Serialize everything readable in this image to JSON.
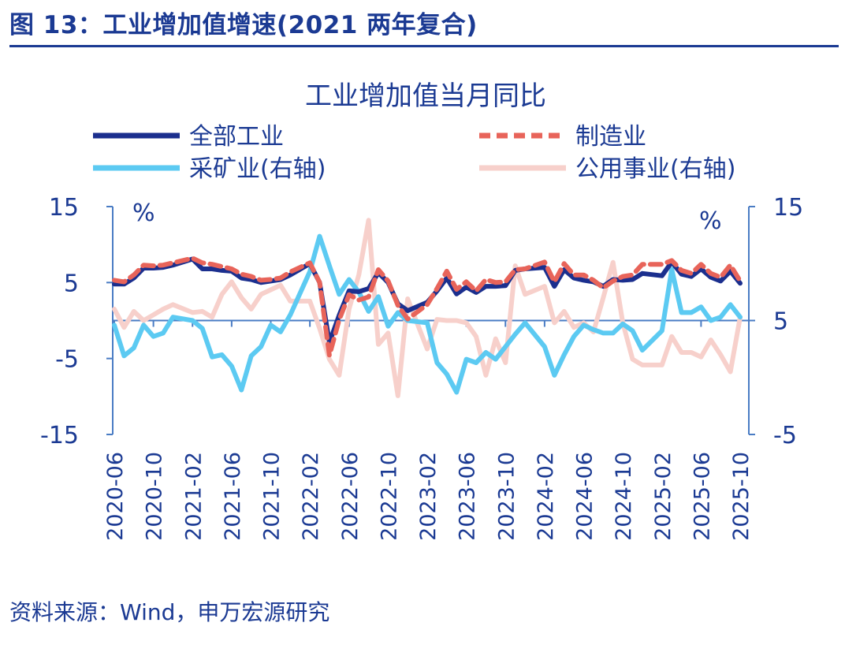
{
  "header": {
    "figure_title": "图 13：工业增加值增速(2021 两年复合)"
  },
  "footer": {
    "source": "资料来源：Wind，申万宏源研究"
  },
  "colors": {
    "total": "#1b2f8e",
    "manufacturing": "#e8645a",
    "mining": "#5ccaf2",
    "utilities": "#f7d0cb",
    "axis": "#4a7cc4",
    "text": "#1b3a93"
  },
  "chart_data": {
    "type": "line",
    "title": "工业增加值当月同比",
    "left_unit": "%",
    "right_unit": "%",
    "ylim_left": [
      -15,
      15
    ],
    "ylim_right": [
      -5,
      15
    ],
    "yticks_left": [
      "15",
      "5",
      "-5",
      "-15"
    ],
    "yticks_right": [
      "15",
      "5",
      "-5"
    ],
    "legend_placement": "top",
    "x": [
      "2020-06",
      "2020-07",
      "2020-08",
      "2020-09",
      "2020-10",
      "2020-11",
      "2020-12",
      "2021-01",
      "2021-02",
      "2021-03",
      "2021-04",
      "2021-05",
      "2021-06",
      "2021-07",
      "2021-08",
      "2021-09",
      "2021-10",
      "2021-11",
      "2021-12",
      "2022-01",
      "2022-02",
      "2022-03",
      "2022-04",
      "2022-05",
      "2022-06",
      "2022-07",
      "2022-08",
      "2022-09",
      "2022-10",
      "2022-11",
      "2022-12",
      "2023-01",
      "2023-02",
      "2023-03",
      "2023-04",
      "2023-05",
      "2023-06",
      "2023-07",
      "2023-08",
      "2023-09",
      "2023-10",
      "2023-11",
      "2023-12",
      "2024-01",
      "2024-02",
      "2024-03",
      "2024-04",
      "2024-05",
      "2024-06",
      "2024-07",
      "2024-08",
      "2024-09",
      "2024-10",
      "2024-11",
      "2024-12",
      "2025-01",
      "2025-02",
      "2025-03",
      "2025-04",
      "2025-05",
      "2025-06",
      "2025-07",
      "2025-08",
      "2025-09",
      "2025-10"
    ],
    "xtick_labels": [
      "2020-06",
      "2020-10",
      "2021-02",
      "2021-06",
      "2021-10",
      "2022-02",
      "2022-06",
      "2022-10",
      "2023-02",
      "2023-06",
      "2023-10",
      "2024-02",
      "2024-06",
      "2024-10",
      "2025-02",
      "2025-06",
      "2025-10"
    ],
    "series": [
      {
        "name": "全部工业",
        "axis": "left",
        "style": "solid",
        "values": [
          4.8,
          4.8,
          5.6,
          6.9,
          6.9,
          7.0,
          7.3,
          null,
          8.1,
          6.8,
          6.8,
          6.6,
          6.5,
          5.6,
          5.4,
          5.0,
          5.2,
          5.4,
          6.0,
          null,
          7.5,
          5.0,
          -2.9,
          0.7,
          3.9,
          3.8,
          4.2,
          6.3,
          5.0,
          2.2,
          1.3,
          null,
          2.4,
          3.9,
          5.6,
          3.5,
          4.4,
          3.7,
          4.5,
          4.5,
          4.6,
          6.6,
          6.8,
          null,
          7.0,
          4.5,
          6.7,
          5.6,
          5.3,
          5.1,
          4.5,
          5.4,
          5.3,
          5.4,
          6.2,
          null,
          5.9,
          7.7,
          6.1,
          5.8,
          6.8,
          5.7,
          5.2,
          6.5,
          4.9
        ]
      },
      {
        "name": "制造业",
        "axis": "left",
        "style": "dashed",
        "values": [
          5.3,
          5.1,
          6.0,
          7.3,
          7.2,
          7.3,
          7.6,
          null,
          8.2,
          7.6,
          7.4,
          7.1,
          6.8,
          6.1,
          5.8,
          5.3,
          5.4,
          5.6,
          6.4,
          null,
          7.6,
          5.0,
          -4.6,
          0.1,
          3.4,
          2.7,
          3.1,
          6.7,
          5.2,
          2.0,
          0.2,
          null,
          2.1,
          4.2,
          6.5,
          4.1,
          5.1,
          3.9,
          5.4,
          5.0,
          5.1,
          6.7,
          6.8,
          null,
          7.7,
          5.1,
          7.5,
          6.0,
          6.0,
          5.3,
          4.3,
          5.2,
          5.8,
          6.0,
          7.4,
          null,
          7.4,
          7.9,
          6.6,
          6.2,
          7.4,
          6.2,
          5.7,
          7.3,
          5.2
        ]
      },
      {
        "name": "采矿业(右轴)",
        "axis": "right",
        "style": "solid",
        "values": [
          4.6,
          1.9,
          2.6,
          4.6,
          3.6,
          3.9,
          5.3,
          null,
          5.0,
          4.3,
          1.8,
          2.0,
          1.0,
          -1.1,
          1.9,
          2.7,
          4.6,
          4.0,
          5.5,
          null,
          9.3,
          12.4,
          9.8,
          7.3,
          8.6,
          7.5,
          5.8,
          7.1,
          4.5,
          5.7,
          5.0,
          null,
          4.8,
          1.3,
          0.3,
          -1.3,
          1.6,
          1.3,
          2.2,
          1.6,
          2.7,
          3.8,
          4.8,
          null,
          2.7,
          0.2,
          2.0,
          3.6,
          4.6,
          4.2,
          3.9,
          3.9,
          4.7,
          4.1,
          2.4,
          null,
          4.1,
          9.5,
          5.7,
          5.7,
          6.2,
          5.0,
          5.3,
          6.4,
          5.3
        ]
      },
      {
        "name": "公用事业(右轴)",
        "axis": "right",
        "style": "solid",
        "values": [
          6.0,
          4.4,
          5.8,
          5.0,
          5.5,
          6.0,
          6.4,
          null,
          5.7,
          5.8,
          5.3,
          7.3,
          8.4,
          7.0,
          6.0,
          7.3,
          7.7,
          8.1,
          6.7,
          null,
          6.7,
          4.3,
          1.6,
          0.2,
          6.0,
          9.0,
          13.8,
          2.9,
          3.9,
          -1.6,
          6.9,
          null,
          2.5,
          5.1,
          5.0,
          5.0,
          4.8,
          3.6,
          0.2,
          3.4,
          1.3,
          9.8,
          7.3,
          null,
          8.0,
          4.8,
          5.8,
          4.4,
          4.8,
          4.0,
          7.0,
          10.1,
          4.8,
          1.6,
          1.1,
          null,
          1.1,
          3.6,
          2.2,
          2.2,
          1.8,
          3.3,
          2.0,
          0.5,
          5.3
        ]
      }
    ]
  }
}
